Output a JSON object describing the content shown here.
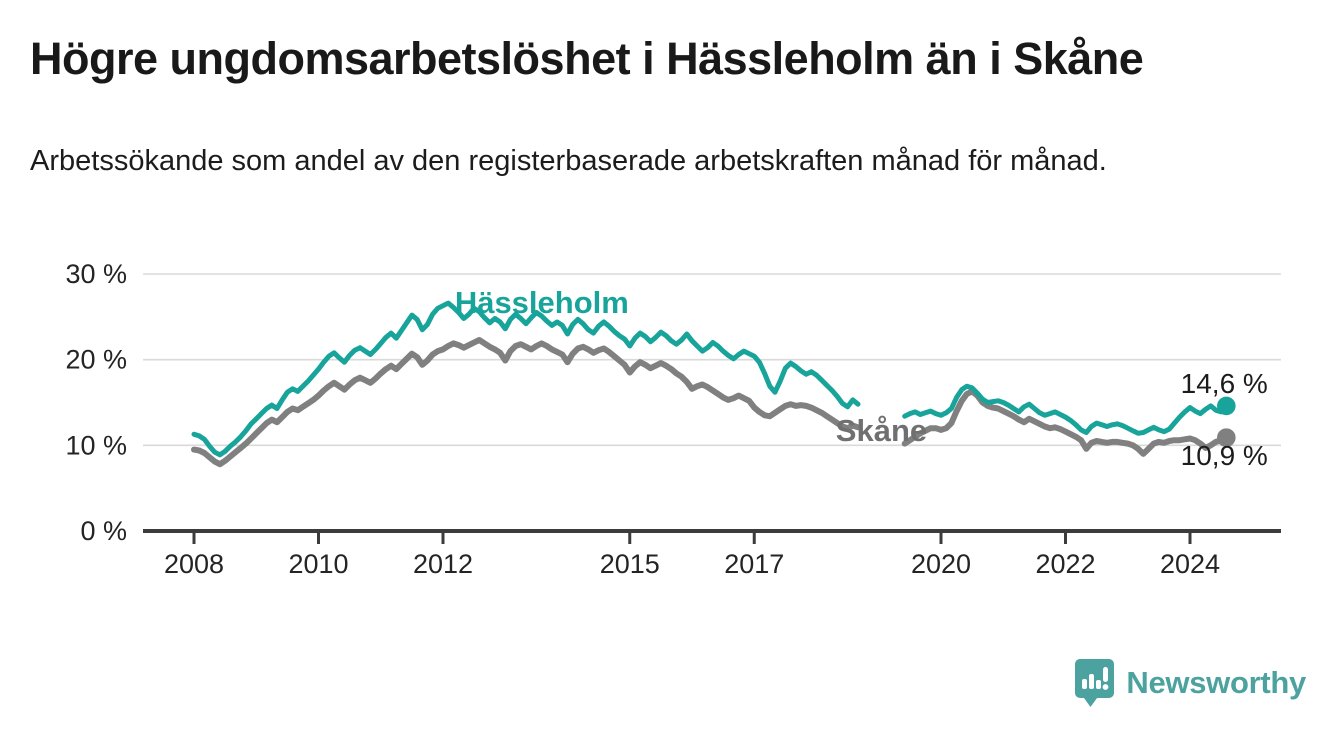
{
  "header": {
    "title": "Högre ungdomsarbetslöshet i Hässleholm än i Skåne",
    "subtitle": "Arbetssökande som andel av den registerbaserade arbetskraften månad för månad."
  },
  "footer": {
    "brand_name": "Newsworthy",
    "brand_color": "#4ba29e",
    "logo_icon": "speech-bubble-bar-chart"
  },
  "chart_data": {
    "type": "line",
    "title": "Högre ungdomsarbetslöshet i Hässleholm än i Skåne",
    "subtitle": "Arbetssökande som andel av den registerbaserade arbetskraften månad för månad.",
    "x_unit": "month",
    "x_start_year": 2008,
    "x_axis_range": [
      2007.2,
      2025.45
    ],
    "ylim": [
      0,
      30
    ],
    "grid": "horizontal",
    "legend_position": "inline-labels",
    "data_gap_note": "no data Oct 2018 - May 2019",
    "yticks": [
      {
        "value": 0,
        "label": "0 %"
      },
      {
        "value": 10,
        "label": "10 %"
      },
      {
        "value": 20,
        "label": "20 %"
      },
      {
        "value": 30,
        "label": "30 %"
      }
    ],
    "xticks": [
      {
        "year": 2008,
        "label": "2008"
      },
      {
        "year": 2010,
        "label": "2010"
      },
      {
        "year": 2012,
        "label": "2012"
      },
      {
        "year": 2015,
        "label": "2015"
      },
      {
        "year": 2017,
        "label": "2017"
      },
      {
        "year": 2020,
        "label": "2020"
      },
      {
        "year": 2022,
        "label": "2022"
      },
      {
        "year": 2024,
        "label": "2024"
      }
    ],
    "series": [
      {
        "name": "Skåne",
        "color": "#808080",
        "label_color": "#707070",
        "line_width": 6,
        "label_anchor": {
          "year": 2018.31,
          "pct": 11.7
        },
        "end_label": "10,9 %",
        "end_label_anchor": {
          "year": 2025.25,
          "pct": 8.9
        },
        "end_value": 10.9,
        "values": [
          9.5,
          9.4,
          9.1,
          8.6,
          8.1,
          7.8,
          8.2,
          8.7,
          9.2,
          9.7,
          10.2,
          10.8,
          11.4,
          12.0,
          12.6,
          13.0,
          12.7,
          13.3,
          13.9,
          14.3,
          14.1,
          14.5,
          14.9,
          15.3,
          15.8,
          16.4,
          16.9,
          17.3,
          16.9,
          16.5,
          17.1,
          17.6,
          17.9,
          17.6,
          17.3,
          17.8,
          18.4,
          18.9,
          19.3,
          18.9,
          19.5,
          20.1,
          20.7,
          20.3,
          19.4,
          19.9,
          20.6,
          21.0,
          21.2,
          21.6,
          21.9,
          21.7,
          21.4,
          21.7,
          22.0,
          22.3,
          21.9,
          21.5,
          21.2,
          20.8,
          19.9,
          21.0,
          21.6,
          21.8,
          21.5,
          21.2,
          21.6,
          21.9,
          21.6,
          21.2,
          20.9,
          20.6,
          19.7,
          20.7,
          21.3,
          21.5,
          21.2,
          20.8,
          21.1,
          21.3,
          20.9,
          20.4,
          19.9,
          19.4,
          18.5,
          19.2,
          19.7,
          19.4,
          19.0,
          19.3,
          19.6,
          19.3,
          18.9,
          18.4,
          18.0,
          17.4,
          16.6,
          16.9,
          17.1,
          16.8,
          16.4,
          16.0,
          15.6,
          15.3,
          15.5,
          15.8,
          15.5,
          15.2,
          14.4,
          13.9,
          13.5,
          13.4,
          13.8,
          14.2,
          14.6,
          14.8,
          14.6,
          14.7,
          14.6,
          14.4,
          14.1,
          13.8,
          13.4,
          13.0,
          12.6,
          12.2,
          12.0,
          12.3,
          12.1,
          null,
          null,
          null,
          null,
          null,
          null,
          null,
          null,
          10.2,
          10.6,
          11.0,
          11.4,
          11.7,
          12.0,
          12.0,
          11.8,
          12.0,
          12.6,
          14.0,
          15.2,
          16.0,
          16.3,
          15.8,
          15.0,
          14.6,
          14.4,
          14.3,
          14.0,
          13.7,
          13.4,
          13.0,
          12.7,
          13.1,
          12.8,
          12.5,
          12.2,
          12.0,
          12.1,
          11.9,
          11.6,
          11.3,
          11.0,
          10.6,
          9.6,
          10.3,
          10.5,
          10.4,
          10.3,
          10.4,
          10.4,
          10.3,
          10.2,
          10.0,
          9.6,
          9.0,
          9.6,
          10.2,
          10.4,
          10.3,
          10.5,
          10.6,
          10.6,
          10.7,
          10.8,
          10.6,
          10.2,
          9.7,
          10.0,
          10.4,
          10.6,
          10.9
        ]
      },
      {
        "name": "Hässleholm",
        "color": "#18a49b",
        "label_color": "#18a49b",
        "line_width": 5,
        "label_anchor": {
          "year": 2012.19,
          "pct": 26.6
        },
        "end_label": "14,6 %",
        "end_label_anchor": {
          "year": 2025.25,
          "pct": 17.3
        },
        "end_value": 14.6,
        "values": [
          11.3,
          11.1,
          10.7,
          9.9,
          9.2,
          8.9,
          9.3,
          9.9,
          10.4,
          11.0,
          11.7,
          12.5,
          13.1,
          13.7,
          14.3,
          14.7,
          14.3,
          15.3,
          16.2,
          16.6,
          16.3,
          16.9,
          17.5,
          18.2,
          18.9,
          19.7,
          20.4,
          20.8,
          20.2,
          19.7,
          20.5,
          21.1,
          21.4,
          21.0,
          20.6,
          21.2,
          21.9,
          22.6,
          23.1,
          22.5,
          23.4,
          24.3,
          25.2,
          24.7,
          23.5,
          24.1,
          25.3,
          26.0,
          26.3,
          26.6,
          26.1,
          25.5,
          24.8,
          25.3,
          26.0,
          25.6,
          24.9,
          24.3,
          24.8,
          24.4,
          23.6,
          24.7,
          25.3,
          24.8,
          24.2,
          24.9,
          25.5,
          25.1,
          24.5,
          24.0,
          24.4,
          24.0,
          23.0,
          24.1,
          24.7,
          24.2,
          23.5,
          23.1,
          23.9,
          24.4,
          23.9,
          23.3,
          22.8,
          22.4,
          21.6,
          22.5,
          23.1,
          22.7,
          22.1,
          22.6,
          23.2,
          22.8,
          22.2,
          21.8,
          22.3,
          23.0,
          22.2,
          21.6,
          21.0,
          21.4,
          22.0,
          21.6,
          21.0,
          20.5,
          20.1,
          20.6,
          21.0,
          20.7,
          20.4,
          19.7,
          18.4,
          16.9,
          16.2,
          17.5,
          19.0,
          19.6,
          19.2,
          18.7,
          18.3,
          18.6,
          18.2,
          17.6,
          17.0,
          16.4,
          15.7,
          14.9,
          14.5,
          15.3,
          14.8,
          null,
          null,
          null,
          null,
          null,
          null,
          null,
          null,
          13.4,
          13.7,
          13.9,
          13.6,
          13.8,
          14.0,
          13.7,
          13.5,
          13.8,
          14.3,
          15.6,
          16.5,
          16.9,
          16.7,
          16.1,
          15.4,
          15.0,
          15.1,
          15.2,
          15.0,
          14.7,
          14.3,
          13.9,
          14.5,
          14.8,
          14.3,
          13.8,
          13.5,
          13.7,
          13.9,
          13.6,
          13.3,
          12.9,
          12.4,
          11.8,
          11.5,
          12.2,
          12.6,
          12.4,
          12.2,
          12.4,
          12.5,
          12.3,
          12.0,
          11.7,
          11.4,
          11.5,
          11.8,
          12.1,
          11.8,
          11.6,
          11.9,
          12.6,
          13.3,
          13.9,
          14.4,
          14.0,
          13.7,
          14.2,
          14.6,
          14.1,
          13.9,
          14.6
        ]
      }
    ],
    "colors": {
      "hassleholm": "#18a49b",
      "skane": "#808080",
      "gridline": "#dadada",
      "axis": "#3c3c3c",
      "tick_text": "#242424",
      "value_label_text": "#1c1c1c"
    }
  }
}
